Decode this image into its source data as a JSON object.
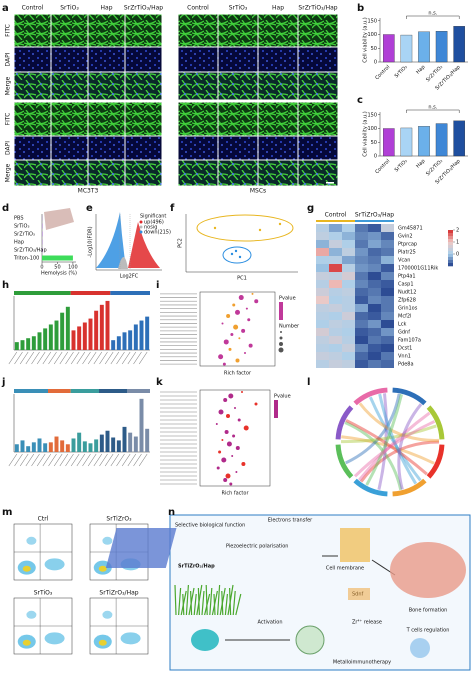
{
  "panel_labels": [
    "a",
    "b",
    "c",
    "d",
    "e",
    "f",
    "g",
    "h",
    "i",
    "j",
    "k",
    "l",
    "m",
    "n"
  ],
  "a": {
    "columns": [
      "Control",
      "SrTiO₃",
      "Hap",
      "SrZrTiO₃/Hap"
    ],
    "rows": [
      "FITC",
      "DAPI",
      "Merge"
    ],
    "groups": [
      "MC3T3",
      "MSCs"
    ]
  },
  "b": {
    "type": "bar",
    "ylabel": "Cell viability (a.u.)",
    "annotation": "n.s.",
    "categories": [
      "Control",
      "SrTiO₃",
      "Hap",
      "SrZrTiO₃",
      "SrZrTiO₃/Hap"
    ],
    "values": [
      100,
      98,
      110,
      112,
      130
    ],
    "colors": [
      "#b03fd6",
      "#a9d4f5",
      "#6bb0ea",
      "#3f87d6",
      "#1f4f9f"
    ],
    "ylim": [
      0,
      160
    ],
    "yticks": [
      0,
      50,
      100,
      150
    ]
  },
  "c": {
    "type": "bar",
    "ylabel": "Cell viability (a.u.)",
    "annotation": "n.s.",
    "categories": [
      "Control",
      "SrTiO₃",
      "Hap",
      "SrZrTiO₃",
      "SrZrTiO₃/Hap"
    ],
    "values": [
      100,
      102,
      108,
      118,
      128
    ],
    "colors": [
      "#b03fd6",
      "#a9d4f5",
      "#6bb0ea",
      "#3f87d6",
      "#1f4f9f"
    ],
    "ylim": [
      0,
      160
    ],
    "yticks": [
      0,
      50,
      100,
      150
    ]
  },
  "d": {
    "type": "hbar",
    "xlabel": "Hemolysis (%)",
    "categories": [
      "PBS",
      "SrTiO₃",
      "SrZrTiO₃",
      "Hap",
      "SrZrTiO₃/Hap",
      "Triton-100"
    ],
    "values": [
      0.5,
      1,
      1.2,
      0.8,
      1,
      100
    ],
    "colors": [
      "#8a3fc8",
      "#8a3fc8",
      "#8a3fc8",
      "#8a3fc8",
      "#8a3fc8",
      "#3ddc5a"
    ],
    "xlim": [
      0,
      110
    ],
    "xticks": [
      0,
      50,
      100
    ]
  },
  "e": {
    "xlabel": "Log2FC",
    "ylabel": "-Log10(FDR)",
    "legend_title": "Significant",
    "legend": [
      "up(496)",
      "nosig",
      "down(215)"
    ]
  },
  "f": {
    "xlabel": "PC1",
    "ylabel": "PC2"
  },
  "g": {
    "groups": [
      "Control",
      "SrTiZrO₃/Hap"
    ],
    "genes": [
      "Gm45871",
      "Gvin2",
      "Ptprcap",
      "Platr25",
      "Vcan",
      "1700001G11Rik",
      "Ptp4a1",
      "Casp1",
      "Nudt12",
      "Zfp628",
      "Grin1os",
      "Mcf2l",
      "Lck",
      "Gdnf",
      "Fam107a",
      "Dcst1",
      "Vnn1",
      "Pde8a"
    ],
    "matrix": [
      [
        0.2,
        -0.3,
        0.1,
        -0.6,
        -0.8,
        0.4
      ],
      [
        0.3,
        0.1,
        -0.2,
        -0.5,
        -0.4,
        -0.7
      ],
      [
        -0.2,
        0.4,
        0.1,
        -0.6,
        -0.3,
        -0.5
      ],
      [
        1.2,
        -0.2,
        0.3,
        -0.4,
        -0.7,
        -0.6
      ],
      [
        0.1,
        0.2,
        -0.3,
        -0.5,
        -0.6,
        -0.2
      ],
      [
        -0.1,
        1.8,
        0.2,
        -0.4,
        -0.5,
        -0.8
      ],
      [
        0.4,
        0.3,
        0.6,
        -0.6,
        -0.9,
        -0.5
      ],
      [
        0.2,
        1.1,
        0.1,
        -0.5,
        -0.7,
        -0.8
      ],
      [
        0.5,
        0.2,
        0.3,
        -0.7,
        -0.6,
        -0.9
      ],
      [
        0.9,
        0.1,
        0.2,
        -0.8,
        -0.5,
        -0.6
      ],
      [
        0.3,
        0.4,
        0.2,
        -0.3,
        -0.9,
        -0.6
      ],
      [
        0.2,
        0.1,
        0.5,
        -0.7,
        -0.8,
        -0.5
      ],
      [
        0.1,
        0.3,
        0.2,
        -0.6,
        -0.4,
        -0.9
      ],
      [
        0.6,
        0.2,
        0.1,
        -0.8,
        -0.7,
        -0.4
      ],
      [
        0.3,
        0.5,
        0.2,
        -0.9,
        -0.6,
        -0.7
      ],
      [
        0.2,
        0.1,
        0.4,
        -0.5,
        -0.8,
        -0.9
      ],
      [
        0.4,
        0.3,
        0.1,
        -0.7,
        -0.9,
        -0.6
      ],
      [
        0.2,
        0.4,
        0.3,
        -0.8,
        -0.6,
        -0.7
      ]
    ],
    "clim": [
      -1,
      2
    ],
    "cticks": [
      2,
      1,
      0
    ]
  },
  "h": {
    "ylim": [
      0,
      55
    ],
    "series": [
      {
        "color": "#2e9d3a",
        "values": [
          8,
          10,
          12,
          14,
          18,
          22,
          26,
          30,
          38,
          44
        ]
      },
      {
        "color": "#d8322e",
        "values": [
          20,
          24,
          28,
          32,
          40,
          46,
          50
        ]
      },
      {
        "color": "#2d6fb8",
        "values": [
          10,
          14,
          18,
          20,
          26,
          30,
          34
        ]
      }
    ]
  },
  "i": {
    "xlabel": "Rich factor",
    "legend_title": "Pvalue",
    "size_title": "Number",
    "xlim": [
      0,
      0.4
    ],
    "values": [
      0.28,
      0.22,
      0.3,
      0.18,
      0.25,
      0.2,
      0.15,
      0.26,
      0.12,
      0.19,
      0.23,
      0.17,
      0.21,
      0.14,
      0.27,
      0.16,
      0.24,
      0.11,
      0.2,
      0.13
    ]
  },
  "j": {
    "ylim": [
      0,
      60
    ],
    "series": [
      {
        "color": "#3a8fb7",
        "values": [
          8,
          12,
          6,
          10,
          14,
          9
        ]
      },
      {
        "color": "#e26b3a",
        "values": [
          10,
          16,
          12,
          8
        ]
      },
      {
        "color": "#3a9d9d",
        "values": [
          14,
          20,
          11,
          9,
          13
        ]
      },
      {
        "color": "#2d5b88",
        "values": [
          18,
          22,
          15,
          12,
          26
        ]
      },
      {
        "color": "#7a8ca8",
        "values": [
          20,
          16,
          55,
          24
        ]
      }
    ]
  },
  "k": {
    "xlabel": "Rich factor",
    "legend_title": "Pvalue",
    "xlim": [
      0,
      0.5
    ],
    "values": [
      0.3,
      0.22,
      0.18,
      0.4,
      0.25,
      0.15,
      0.2,
      0.28,
      0.12,
      0.33,
      0.19,
      0.24,
      0.16,
      0.21,
      0.27,
      0.14,
      0.23,
      0.17,
      0.31,
      0.13,
      0.26,
      0.2,
      0.18,
      0.22
    ]
  },
  "m": {
    "titles": [
      "Ctrl",
      "SrTiZrO₃",
      "SrTiO₃",
      "SrTiZrO₃/Hap"
    ]
  },
  "n": {
    "texts": [
      "Selective biological function",
      "Electrons transfer",
      "Piezoelectric polarisation",
      "SrTiZrO₃/Hap",
      "Cell membrane",
      "Sdnf",
      "Bone formation",
      "Activation",
      "Zr⁴⁺ release",
      "T cells regulation",
      "Metalloimmunotherapy"
    ]
  }
}
